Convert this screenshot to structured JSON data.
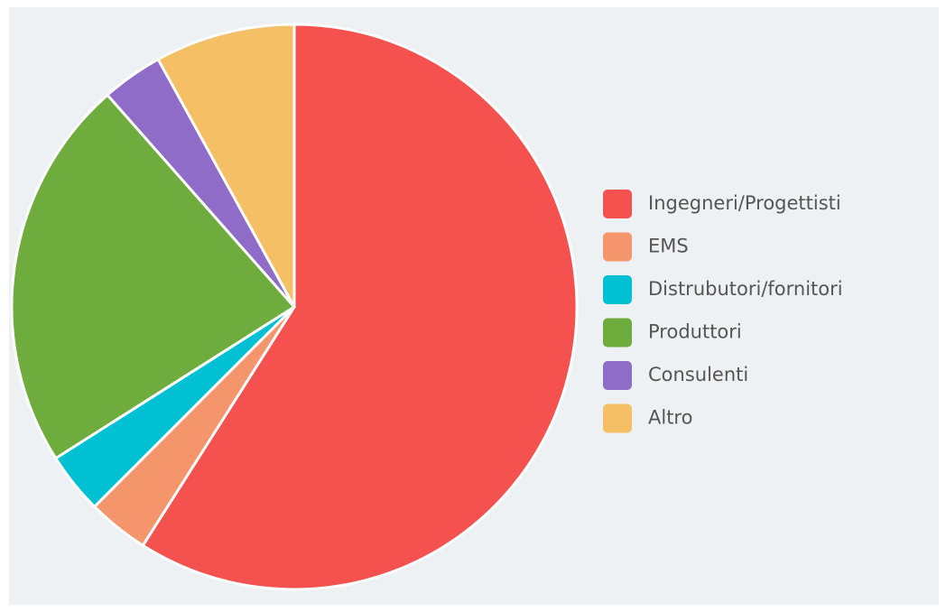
{
  "chart_data": {
    "type": "pie",
    "categories": [
      "Ingegneri/Progettisti",
      "EMS",
      "Distrubutori/fornitori",
      "Produttori",
      "Consulenti",
      "Altro"
    ],
    "values": [
      59,
      3.5,
      3.5,
      22.5,
      3.5,
      8
    ],
    "colors": [
      "#f5524f",
      "#f5956b",
      "#00c0d4",
      "#6fac3e",
      "#8e6cc8",
      "#f5bf66"
    ],
    "legend": "right"
  }
}
